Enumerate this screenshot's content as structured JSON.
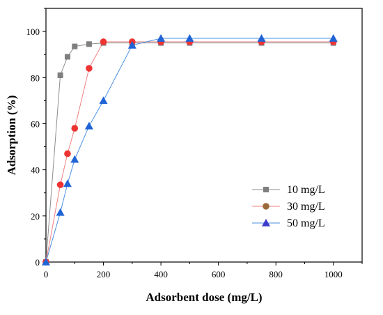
{
  "chart_data": {
    "type": "line",
    "title": "",
    "xlabel": "Adsorbent dose (mg/L)",
    "ylabel": "Adsorption (%)",
    "xlim": [
      0,
      1100
    ],
    "ylim": [
      0,
      110
    ],
    "xticks": [
      0,
      200,
      400,
      600,
      800,
      1000
    ],
    "yticks": [
      0,
      20,
      40,
      60,
      80,
      100
    ],
    "grid": false,
    "legend_position": "center-right",
    "series": [
      {
        "name": "10 mg/L",
        "marker": "square",
        "line_color": "#8c8c8c",
        "marker_color": "#7f7f7f",
        "points": [
          [
            0,
            0
          ],
          [
            50,
            81
          ],
          [
            75,
            89
          ],
          [
            100,
            93.5
          ],
          [
            150,
            94.5
          ],
          [
            200,
            95
          ],
          [
            300,
            95
          ],
          [
            400,
            95
          ],
          [
            500,
            95
          ],
          [
            750,
            95
          ],
          [
            1000,
            95
          ]
        ]
      },
      {
        "name": "30 mg/L",
        "marker": "circle",
        "line_color": "#f08080",
        "marker_color": "#ee3333",
        "legend_marker_color": "#9a6a3a",
        "points": [
          [
            0,
            0
          ],
          [
            50,
            33.5
          ],
          [
            75,
            47
          ],
          [
            100,
            58
          ],
          [
            150,
            84
          ],
          [
            200,
            95.5
          ],
          [
            300,
            95.5
          ],
          [
            400,
            95.5
          ],
          [
            500,
            95.5
          ],
          [
            750,
            95.5
          ],
          [
            1000,
            95.5
          ]
        ]
      },
      {
        "name": "50 mg/L",
        "marker": "triangle",
        "line_color": "#4a90e2",
        "marker_color": "#1f63d6",
        "legend_marker_color": "#3a3acc",
        "points": [
          [
            0,
            0
          ],
          [
            50,
            21.5
          ],
          [
            75,
            34
          ],
          [
            100,
            44.5
          ],
          [
            150,
            59
          ],
          [
            200,
            70
          ],
          [
            300,
            94
          ],
          [
            400,
            97
          ],
          [
            500,
            97
          ],
          [
            750,
            97
          ],
          [
            1000,
            97
          ]
        ]
      }
    ]
  }
}
